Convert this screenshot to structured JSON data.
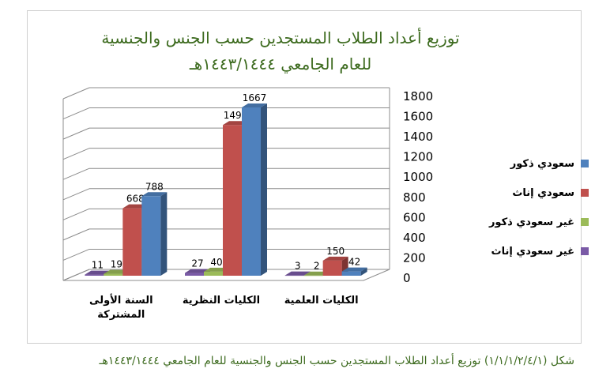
{
  "chart_data": {
    "type": "bar",
    "title_lines": [
      "توزيع أعداد الطلاب المستجدين حسب الجنس والجنسية",
      "للعام الجامعي ١٤٤٣/١٤٤٤هـ"
    ],
    "categories": [
      "السنة الأولى المشتركة",
      "الكليات النظرية",
      "الكليات العلمية"
    ],
    "category_label_lines": [
      [
        "السنة الأولى",
        "المشتركة"
      ],
      [
        "الكليات النظرية"
      ],
      [
        "الكليات العلمية"
      ]
    ],
    "series": [
      {
        "name": "غير سعودي إناث",
        "color": "#7a5aa6",
        "values": [
          11,
          27,
          3
        ]
      },
      {
        "name": "غير سعودي ذكور",
        "color": "#9bbb59",
        "values": [
          19,
          40,
          2
        ]
      },
      {
        "name": "سعودي إناث",
        "color": "#c0504d",
        "values": [
          668,
          1493,
          150
        ]
      },
      {
        "name": "سعودي ذكور",
        "color": "#4f81bd",
        "values": [
          788,
          1667,
          42
        ]
      }
    ],
    "legend_order": [
      3,
      2,
      1,
      0
    ],
    "ylim": [
      0,
      1800
    ],
    "yticks": [
      0,
      200,
      400,
      600,
      800,
      1000,
      1200,
      1400,
      1600,
      1800
    ],
    "grid": true,
    "three_d": true,
    "legend_position": "right"
  },
  "caption": "شكل (١/١/١/٢/٤/١) توزيع أعداد الطلاب المستجدين حسب الجنس والجنسية للعام الجامعي ١٤٤٣/١٤٤٤هـ"
}
